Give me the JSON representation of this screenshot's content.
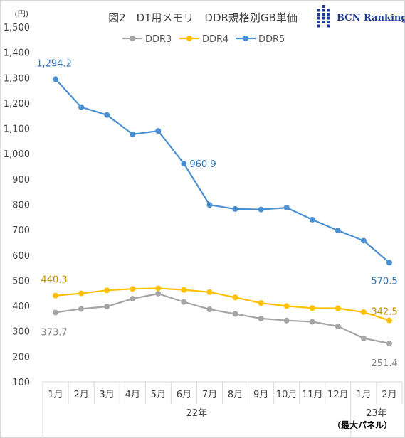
{
  "chart_data": {
    "type": "line",
    "title": "図2　DT用メモリ　DDR規格別GB単価",
    "y_unit_label": "(円)",
    "ylim": [
      100,
      1500
    ],
    "yticks": [
      100,
      200,
      300,
      400,
      500,
      600,
      700,
      800,
      900,
      1000,
      1100,
      1200,
      1300,
      1400,
      1500
    ],
    "ytick_labels": [
      "100",
      "200",
      "300",
      "400",
      "500",
      "600",
      "700",
      "800",
      "900",
      "1,000",
      "1,100",
      "1,200",
      "1,300",
      "1,400",
      "1,500"
    ],
    "categories": [
      "1月",
      "2月",
      "3月",
      "4月",
      "5月",
      "6月",
      "7月",
      "8月",
      "9月",
      "10月",
      "11月",
      "12月",
      "1月",
      "2月"
    ],
    "year_groups": [
      {
        "label": "22年",
        "start": 0,
        "end": 11
      },
      {
        "label": "23年",
        "start": 12,
        "end": 13
      }
    ],
    "legend_position": "top",
    "series": [
      {
        "name": "DDR3",
        "color": "#a5a5a5",
        "values": [
          373.7,
          388,
          397,
          428,
          448,
          415,
          386,
          368,
          350,
          342,
          337,
          319,
          272,
          251.4
        ]
      },
      {
        "name": "DDR4",
        "color": "#ffc000",
        "values": [
          440.3,
          449,
          461,
          467,
          469,
          463,
          454,
          433,
          411,
          399,
          391,
          390,
          375,
          342.5
        ]
      },
      {
        "name": "DDR5",
        "color": "#4a8fd2",
        "values": [
          1294.2,
          1184,
          1153,
          1077,
          1090,
          960.9,
          798,
          782,
          780,
          787,
          740,
          697,
          657,
          570.5
        ]
      }
    ],
    "data_labels": [
      {
        "series": 2,
        "index": 0,
        "text": "1,294.2",
        "color": "#2e75b6"
      },
      {
        "series": 2,
        "index": 5,
        "text": "960.9",
        "color": "#2e75b6"
      },
      {
        "series": 2,
        "index": 13,
        "text": "570.5",
        "color": "#2e75b6"
      },
      {
        "series": 1,
        "index": 0,
        "text": "440.3",
        "color": "#bf9000"
      },
      {
        "series": 1,
        "index": 13,
        "text": "342.5",
        "color": "#bf9000"
      },
      {
        "series": 0,
        "index": 0,
        "text": "373.7",
        "color": "#7f7f7f"
      },
      {
        "series": 0,
        "index": 13,
        "text": "251.4",
        "color": "#7f7f7f"
      }
    ],
    "gridlines": false,
    "note": "（最大パネル）"
  },
  "logo": {
    "text": "BCN Ranking",
    "color": "#1f3a93"
  }
}
